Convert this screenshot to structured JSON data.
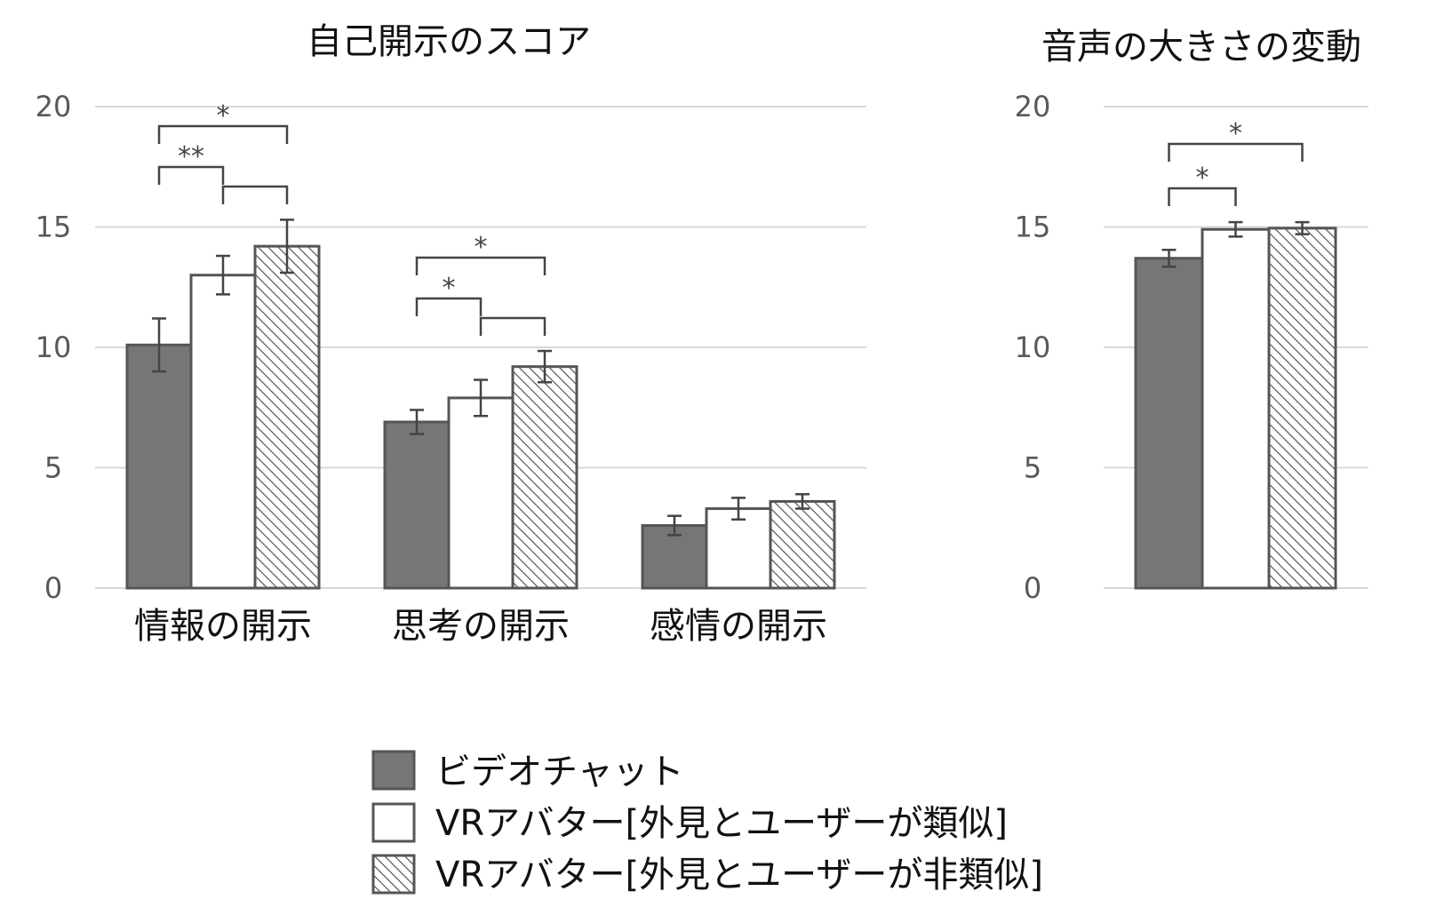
{
  "chart_data": [
    {
      "type": "bar",
      "title": "自己開示のスコア",
      "categories": [
        "情報の開示",
        "思考の開示",
        "感情の開示"
      ],
      "ylim": [
        0,
        20
      ],
      "yticks": [
        0,
        5,
        10,
        15,
        20
      ],
      "grid": true,
      "series": [
        {
          "name": "ビデオチャット",
          "values": [
            10.1,
            6.9,
            2.6
          ],
          "errors": [
            1.1,
            0.5,
            0.4
          ]
        },
        {
          "name": "VRアバター[外見とユーザーが類似]",
          "values": [
            13.0,
            7.9,
            3.3
          ],
          "errors": [
            0.8,
            0.75,
            0.45
          ]
        },
        {
          "name": "VRアバター[外見とユーザーが非類似]",
          "values": [
            14.2,
            9.2,
            3.6
          ],
          "errors": [
            1.1,
            0.65,
            0.3
          ]
        }
      ],
      "significance": [
        {
          "category": 0,
          "from": 0,
          "to": 2,
          "label": "*"
        },
        {
          "category": 0,
          "from": 0,
          "to": 1,
          "label": "**"
        },
        {
          "category": 0,
          "from": 1,
          "to": 2,
          "label": ""
        },
        {
          "category": 1,
          "from": 0,
          "to": 2,
          "label": "*"
        },
        {
          "category": 1,
          "from": 0,
          "to": 1,
          "label": "*"
        },
        {
          "category": 1,
          "from": 1,
          "to": 2,
          "label": ""
        }
      ]
    },
    {
      "type": "bar",
      "title": "音声の大きさの変動",
      "categories": [
        ""
      ],
      "ylim": [
        0,
        20
      ],
      "yticks": [
        0,
        5,
        10,
        15,
        20
      ],
      "grid": true,
      "series": [
        {
          "name": "ビデオチャット",
          "values": [
            13.7
          ],
          "errors": [
            0.35
          ]
        },
        {
          "name": "VRアバター[外見とユーザーが類似]",
          "values": [
            14.9
          ],
          "errors": [
            0.3
          ]
        },
        {
          "name": "VRアバター[外見とユーザーが非類似]",
          "values": [
            14.95
          ],
          "errors": [
            0.25
          ]
        }
      ],
      "significance": [
        {
          "category": 0,
          "from": 0,
          "to": 2,
          "label": "*"
        },
        {
          "category": 0,
          "from": 0,
          "to": 1,
          "label": "*"
        }
      ]
    }
  ],
  "legend": {
    "placement": "bottom-center",
    "items": [
      {
        "label": "ビデオチャット",
        "style": "solid-dark"
      },
      {
        "label": "VRアバター[外見とユーザーが類似]",
        "style": "white"
      },
      {
        "label": "VRアバター[外見とユーザーが非類似]",
        "style": "hatched"
      }
    ]
  },
  "colors": {
    "dark_fill": "#767676",
    "bar_stroke": "#555555",
    "hatch": "#555555",
    "grid": "#d9d9d9",
    "error": "#444444"
  }
}
